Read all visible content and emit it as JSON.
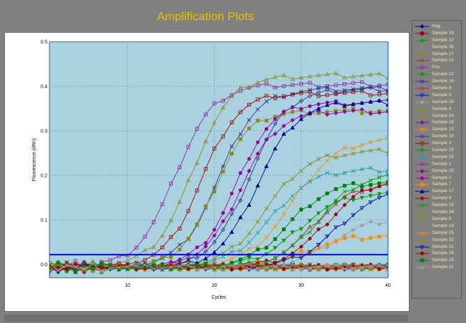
{
  "chart_data": {
    "type": "line",
    "title": "Amplification Plots",
    "xlabel": "Cycles",
    "ylabel": "Fluorescence (dRn)",
    "xlim": [
      1,
      40
    ],
    "ylim": [
      -0.03,
      0.5
    ],
    "xticks": [
      10,
      20,
      30,
      40
    ],
    "yticks": [
      0,
      0.1,
      0.2,
      0.3,
      0.4,
      0.5
    ],
    "ytick_labels": [
      "0.0",
      "0.1",
      "0.2",
      "0.3",
      "0.4",
      "0.5"
    ],
    "grid": true,
    "legend_position": "right",
    "threshold": 0.022,
    "threshold_color": "#0000c8",
    "background_color": "#a9d1df",
    "series": [
      {
        "name": "Neg",
        "color": "#0000a0",
        "marker": "diamond",
        "plateau": 0.0,
        "ct": 0,
        "slope": 1
      },
      {
        "name": "Sample 33",
        "color": "#a00000",
        "marker": "square",
        "plateau": 0.0,
        "ct": 0,
        "slope": 1
      },
      {
        "name": "Sample 12",
        "color": "#00a000",
        "marker": "triangle",
        "plateau": 0.0,
        "ct": 0,
        "slope": 1
      },
      {
        "name": "Sample 30",
        "color": "#808080",
        "marker": "x",
        "plateau": 0.0,
        "ct": 0,
        "slope": 1
      },
      {
        "name": "Sample 27",
        "color": "#8a8a1a",
        "marker": "square",
        "plateau": 0.0,
        "ct": 0,
        "slope": 1
      },
      {
        "name": "Sample 21",
        "color": "#8b4513",
        "marker": "diamond-open",
        "plateau": 0.0,
        "ct": 0,
        "slope": 1
      },
      {
        "name": "Pos",
        "color": "#9a209a",
        "marker": "square-open",
        "plateau": 0.41,
        "ct": 15.5,
        "slope": 2.2
      },
      {
        "name": "Sample 22",
        "color": "#00a000",
        "marker": "triangle-down",
        "plateau": 0.165,
        "ct": 29.5,
        "slope": 2.4
      },
      {
        "name": "Sample 16",
        "color": "#303090",
        "marker": "x",
        "plateau": 0.4,
        "ct": 20.5,
        "slope": 2.2
      },
      {
        "name": "Sample 9",
        "color": "#b03030",
        "marker": "triangle-open",
        "plateau": 0.19,
        "ct": 31.5,
        "slope": 2.3
      },
      {
        "name": "Sample 5",
        "color": "#0000ff",
        "marker": "triangle-down-open",
        "plateau": 0.0,
        "ct": 0,
        "slope": 1
      },
      {
        "name": "Sample 28",
        "color": "#a0a0a0",
        "marker": "diamond",
        "plateau": 0.11,
        "ct": 33.5,
        "slope": 2.3
      },
      {
        "name": "Sample 4",
        "color": "#8a8a1a",
        "marker": "square",
        "plateau": 0.35,
        "ct": 20.0,
        "slope": 2.0
      },
      {
        "name": "Sample 24",
        "color": "#8a8a1a",
        "marker": "triangle-open",
        "plateau": 0.43,
        "ct": 17.5,
        "slope": 2.2
      },
      {
        "name": "Sample 18",
        "color": "#9a009a",
        "marker": "diamond",
        "plateau": 0.35,
        "ct": 23.0,
        "slope": 2.1
      },
      {
        "name": "Sample 13",
        "color": "#ff8c00",
        "marker": "x",
        "plateau": 0.29,
        "ct": 29.0,
        "slope": 2.6
      },
      {
        "name": "Sample 10",
        "color": "#303090",
        "marker": "diamond-open",
        "plateau": 0.4,
        "ct": 24.0,
        "slope": 2.2
      },
      {
        "name": "Sample 3",
        "color": "#a00000",
        "marker": "square-open",
        "plateau": 0.39,
        "ct": 18.5,
        "slope": 2.1
      },
      {
        "name": "Sample 29",
        "color": "#00a000",
        "marker": "triangle-down",
        "plateau": 0.0,
        "ct": 0,
        "slope": 1
      },
      {
        "name": "Sample 23",
        "color": "#20a0a0",
        "marker": "x",
        "plateau": 0.22,
        "ct": 26.5,
        "slope": 2.4
      },
      {
        "name": "Sample 2",
        "color": "#9a209a",
        "marker": "triangle-down-open",
        "plateau": 0.0,
        "ct": 0,
        "slope": 1
      },
      {
        "name": "Sample 20",
        "color": "#9a009a",
        "marker": "circle",
        "plateau": 0.37,
        "ct": 22.5,
        "slope": 2.1
      },
      {
        "name": "Sample 1",
        "color": "#9a009a",
        "marker": "circle",
        "plateau": 0.0,
        "ct": 0,
        "slope": 1
      },
      {
        "name": "Sample 7",
        "color": "#ff8c00",
        "marker": "square",
        "plateau": 0.07,
        "ct": 30.5,
        "slope": 2.3
      },
      {
        "name": "Sample 17",
        "color": "#000090",
        "marker": "triangle",
        "plateau": 0.37,
        "ct": 25.0,
        "slope": 2.2
      },
      {
        "name": "Sample 6",
        "color": "#a00000",
        "marker": "diamond",
        "plateau": 0.2,
        "ct": 33.0,
        "slope": 2.4
      },
      {
        "name": "Sample 19",
        "color": "#00a000",
        "marker": "x",
        "plateau": 0.21,
        "ct": 32.0,
        "slope": 2.3
      },
      {
        "name": "Sample 34",
        "color": "#8a8a1a",
        "marker": "x",
        "plateau": 0.26,
        "ct": 26.0,
        "slope": 2.4
      },
      {
        "name": "Sample 8",
        "color": "#8a8a1a",
        "marker": "triangle-open",
        "plateau": 0.0,
        "ct": 0,
        "slope": 1
      },
      {
        "name": "Sample 14",
        "color": "#808080",
        "marker": "diamond",
        "plateau": 0.0,
        "ct": 0,
        "slope": 1
      },
      {
        "name": "Sample 25",
        "color": "#ff8c00",
        "marker": "triangle-open",
        "plateau": 0.0,
        "ct": 0,
        "slope": 1
      },
      {
        "name": "Sample 32",
        "color": "#8a8a1a",
        "marker": "triangle",
        "plateau": 0.0,
        "ct": 0,
        "slope": 1
      },
      {
        "name": "Sample 31",
        "color": "#0000a0",
        "marker": "triangle-down-open",
        "plateau": 0.17,
        "ct": 34.0,
        "slope": 2.3
      },
      {
        "name": "Sample 26",
        "color": "#a00000",
        "marker": "circle",
        "plateau": 0.0,
        "ct": 0,
        "slope": 1
      },
      {
        "name": "Sample 15",
        "color": "#008000",
        "marker": "square",
        "plateau": 0.19,
        "ct": 28.5,
        "slope": 2.3
      },
      {
        "name": "Sample 11",
        "color": "#a0a0a0",
        "marker": "x",
        "plateau": 0.0,
        "ct": 0,
        "slope": 1
      }
    ]
  }
}
